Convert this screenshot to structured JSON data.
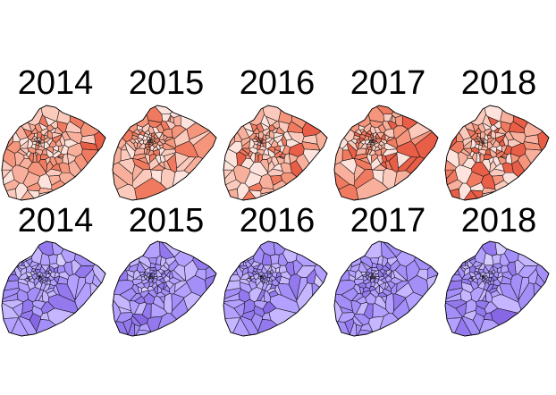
{
  "rows": [
    {
      "name": "red",
      "palette": [
        "#fde3dc",
        "#fbcabc",
        "#f8b09c",
        "#f4957c",
        "#ef7a60",
        "#e85e47"
      ],
      "panels": [
        {
          "year": "2014",
          "seed": 11
        },
        {
          "year": "2015",
          "seed": 23
        },
        {
          "year": "2016",
          "seed": 37
        },
        {
          "year": "2017",
          "seed": 41
        },
        {
          "year": "2018",
          "seed": 53
        }
      ]
    },
    {
      "name": "purple",
      "palette": [
        "#d7ccff",
        "#c5b6ff",
        "#b3a0ff",
        "#a48ef8",
        "#9479ee",
        "#8767e3"
      ],
      "panels": [
        {
          "year": "2014",
          "seed": 61
        },
        {
          "year": "2015",
          "seed": 71
        },
        {
          "year": "2016",
          "seed": 83
        },
        {
          "year": "2017",
          "seed": 97
        },
        {
          "year": "2018",
          "seed": 101
        }
      ]
    }
  ]
}
